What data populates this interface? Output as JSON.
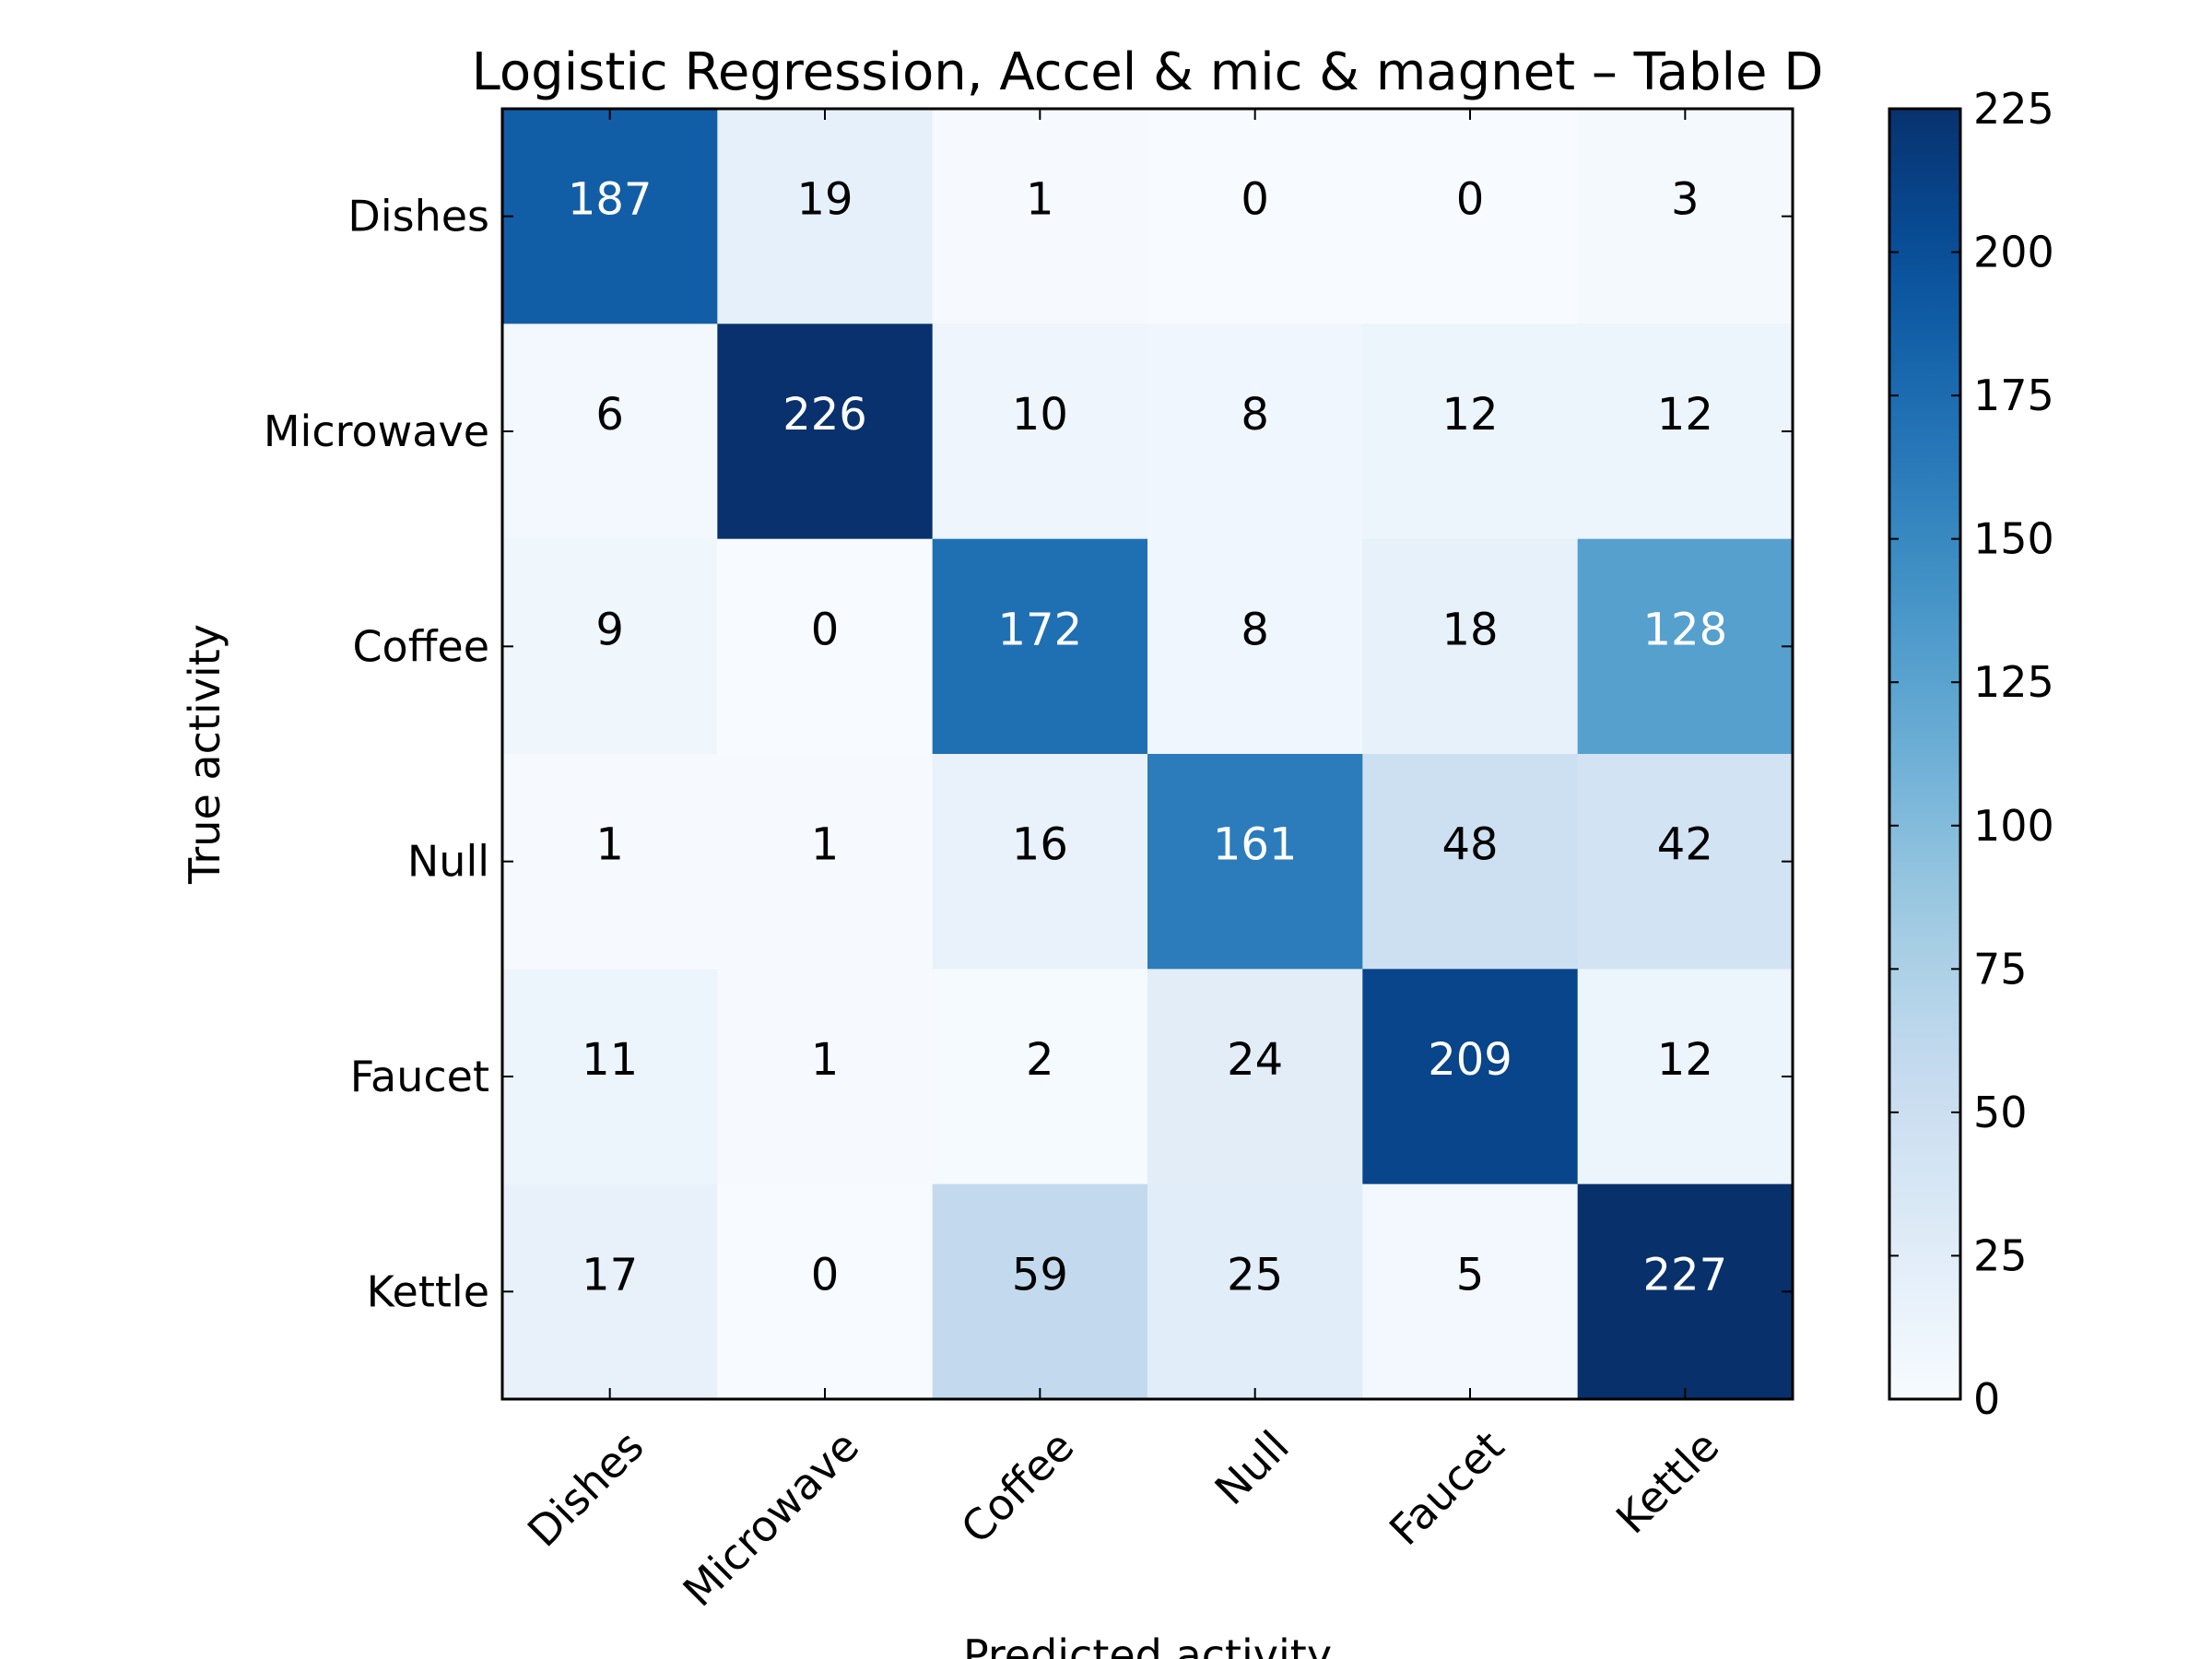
{
  "chart_data": {
    "type": "heatmap",
    "title": "Logistic Regression, Accel & mic & magnet – Table D",
    "xlabel": "Predicted activity",
    "ylabel": "True activity",
    "x_categories": [
      "Dishes",
      "Microwave",
      "Coffee",
      "Null",
      "Faucet",
      "Kettle"
    ],
    "y_categories": [
      "Dishes",
      "Microwave",
      "Coffee",
      "Null",
      "Faucet",
      "Kettle"
    ],
    "values": [
      [
        187,
        19,
        1,
        0,
        0,
        3
      ],
      [
        6,
        226,
        10,
        8,
        12,
        12
      ],
      [
        9,
        0,
        172,
        8,
        18,
        128
      ],
      [
        1,
        1,
        16,
        161,
        48,
        42
      ],
      [
        11,
        1,
        2,
        24,
        209,
        12
      ],
      [
        17,
        0,
        59,
        25,
        5,
        227
      ]
    ],
    "colorbar": {
      "range": [
        0,
        225
      ],
      "ticks": [
        0,
        25,
        50,
        75,
        100,
        125,
        150,
        175,
        200,
        225
      ],
      "colormap": "Blues"
    },
    "grid": false
  }
}
